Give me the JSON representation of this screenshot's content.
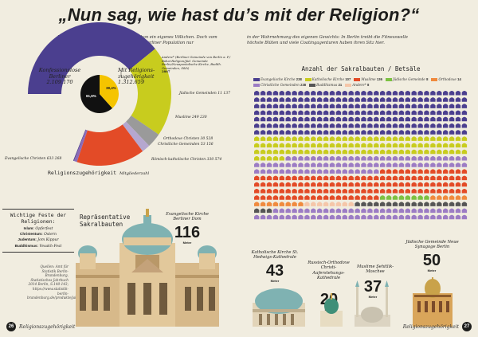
{
  "page": {
    "title": "„Nun sag, wie hast du’s mit der Religion?“",
    "intro_left": "In manchen Dingen sind die Berliner schon ein eigenes Völkchen. Doch vom Rest der Republik unterscheidet sich die Berliner Population nur",
    "intro_right": "in der Wahrnehmung des eigenen Gewichts: In Berlin treibt die Fitnesswelle höchste Blüten und viele Coatingagenturen haben ihren Sitz hier.",
    "page_left": "26",
    "page_right": "27",
    "footer_left": "Religionszugehörigkeit",
    "footer_right": "Religionszugehörigkeit"
  },
  "donut": {
    "konfessionslos_label": "Konfessionslose Berliner",
    "konfessionslos_value": "2.109.170",
    "mit_label": "Mit Religions-zugehörigkeit",
    "mit_value": "1.312.659",
    "pct_small": "38,4%",
    "pct_big": "61,6%",
    "andere_label": "Andere*",
    "andere_note": "(Berliner Gemeinde von Berlin a. P./ Bahai-Religion/Jüd. Gemeinde Berlin/Neuapostolische Kirche, Buddh. Gemeinden, Sikh)",
    "andere_value": "2867",
    "caption": "Religionszugehörigkeit",
    "caption_sub": "Mitgliederzahl"
  },
  "chart_data": [
    {
      "type": "pie",
      "title": "",
      "categories": [
        "Konfessionslose Berliner",
        "Mit Religionszugehörigkeit"
      ],
      "values": [
        2109170,
        1312659
      ],
      "labels": [
        "61,6%",
        "38,4%"
      ]
    },
    {
      "type": "pie",
      "title": "Religionszugehörigkeit",
      "subtitle": "Mitgliederzahl",
      "categories": [
        "Evangelische Christen",
        "Römisch-katholische Christen",
        "Muslime",
        "Jüdische Gemeinden",
        "Orthodoxe Christen",
        "Christliche Gemeinden",
        "Andere*"
      ],
      "values": [
        633268,
        330574,
        249230,
        11137,
        30528,
        53156,
        2867
      ],
      "labels": [
        "Evangelische Christen 633 268",
        "Römisch-katholische Christen 330 574",
        "Muslime 249 230",
        "Jüdische Gemeinden 11 137",
        "Orthodoxe Christen 30 528",
        "Christliche Gemeinden 53 156",
        "Andere* 2867"
      ],
      "colors": [
        "#4b3f8f",
        "#c8cc1e",
        "#e34b27",
        "#8c6bb8",
        "#b5a7cf",
        "#9a9a9a",
        "#4b3f8f"
      ]
    },
    {
      "type": "table",
      "title": "Anzahl der Sakralbauten / Betsäle",
      "categories": [
        "Evangelische Kirche",
        "Katholische Kirche",
        "Muslime",
        "Jüdische Gemeinde",
        "Orthodoxe",
        "Christliche Gemeinden",
        "Buddhismus",
        "Andere*"
      ],
      "values": [
        238,
        107,
        136,
        8,
        14,
        238,
        21,
        8
      ],
      "colors": [
        "#4b3f8f",
        "#c8cc1e",
        "#e34b27",
        "#7cc142",
        "#f08a3d",
        "#9c7cc4",
        "#555555",
        "#f5c6a8"
      ]
    }
  ],
  "sakral": {
    "title": "Anzahl der Sakralbauten / Betsäle",
    "legend": [
      {
        "label": "Evangelische Kirche",
        "count": "238",
        "color": "#4b3f8f"
      },
      {
        "label": "Katholische Kirche",
        "count": "107",
        "color": "#c8cc1e"
      },
      {
        "label": "Muslime",
        "count": "136",
        "color": "#e34b27"
      },
      {
        "label": "Jüdische Gemeinde",
        "count": "8",
        "color": "#7cc142"
      },
      {
        "label": "Orthodoxe",
        "count": "14",
        "color": "#f08a3d"
      },
      {
        "label": "Christliche Gemeinden",
        "count": "238",
        "color": "#9c7cc4"
      },
      {
        "label": "Buddhismus",
        "count": "21",
        "color": "#555555"
      },
      {
        "label": "Andere*",
        "count": "8",
        "color": "#f5c6a8"
      }
    ]
  },
  "feste": {
    "title": "Wichtige Feste der Religionen:",
    "rows": [
      {
        "k": "Islam:",
        "v": "Opferfest"
      },
      {
        "k": "Christentum:",
        "v": "Ostern"
      },
      {
        "k": "Judentum:",
        "v": "Jom Kippur"
      },
      {
        "k": "Buddhismus:",
        "v": "Vesakh-Fest"
      }
    ]
  },
  "quelle": "Quellen: Amt für Statistik Berlin-Brandenburg, Statistisches Jahrbuch 2014 Berlin, S.140-143; https://www.statistik-berlin-brandenburg.de/produkte/jahrbuch/jb2014/JB_2014_BE_pdf",
  "buildings": {
    "repr_title": "Repräsentative Sakralbauten",
    "dom_label": "Evangelische Kirche Berliner Dom",
    "dom_height": "116",
    "hedwig_label": "Katholische Kirche St. Hedwigs-Kathedrale",
    "hedwig_height": "43",
    "russ_label": "Russisch-Orthodoxe Christi-Auferstehungs-Kathedrale",
    "russ_height": "20",
    "moschee_label": "Muslime Şehitlik-Moschee",
    "moschee_height": "37",
    "synagoge_label": "Jüdische Gemeinde Neue Synagoge Berlin",
    "synagoge_height": "50",
    "meter": "Meter"
  }
}
